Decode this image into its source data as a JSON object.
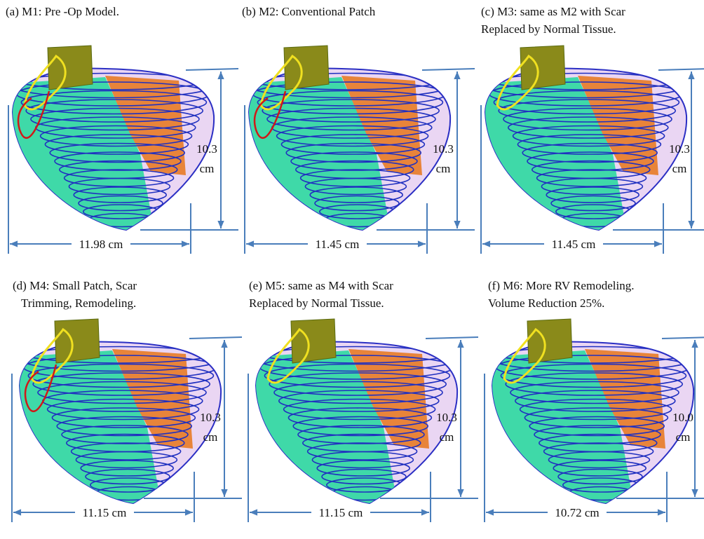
{
  "panels": [
    {
      "caption": [
        "(a) M1: Pre -Op Model."
      ],
      "height": [
        "10.3",
        "cm"
      ],
      "width": "11.98 cm"
    },
    {
      "caption": [
        "(b) M2: Conventional Patch"
      ],
      "height": [
        "10.3",
        "cm"
      ],
      "width": "11.45 cm"
    },
    {
      "caption": [
        "(c) M3: same as M2 with Scar",
        "Replaced by Normal Tissue."
      ],
      "height": [
        "10.3",
        "cm"
      ],
      "width": "11.45 cm"
    },
    {
      "caption": [
        "(d) M4: Small Patch, Scar",
        "Trimming, Remodeling."
      ],
      "height": [
        "10.3",
        "cm"
      ],
      "width": "11.15 cm"
    },
    {
      "caption": [
        "(e) M5: same as M4 with Scar",
        "Replaced by Normal Tissue."
      ],
      "height": [
        "10.3",
        "cm"
      ],
      "width": "11.15 cm"
    },
    {
      "caption": [
        "(f) M6: More RV Remodeling.",
        "Volume Reduction 25%."
      ],
      "height": [
        "10.0",
        "cm"
      ],
      "width": "10.72 cm"
    }
  ]
}
